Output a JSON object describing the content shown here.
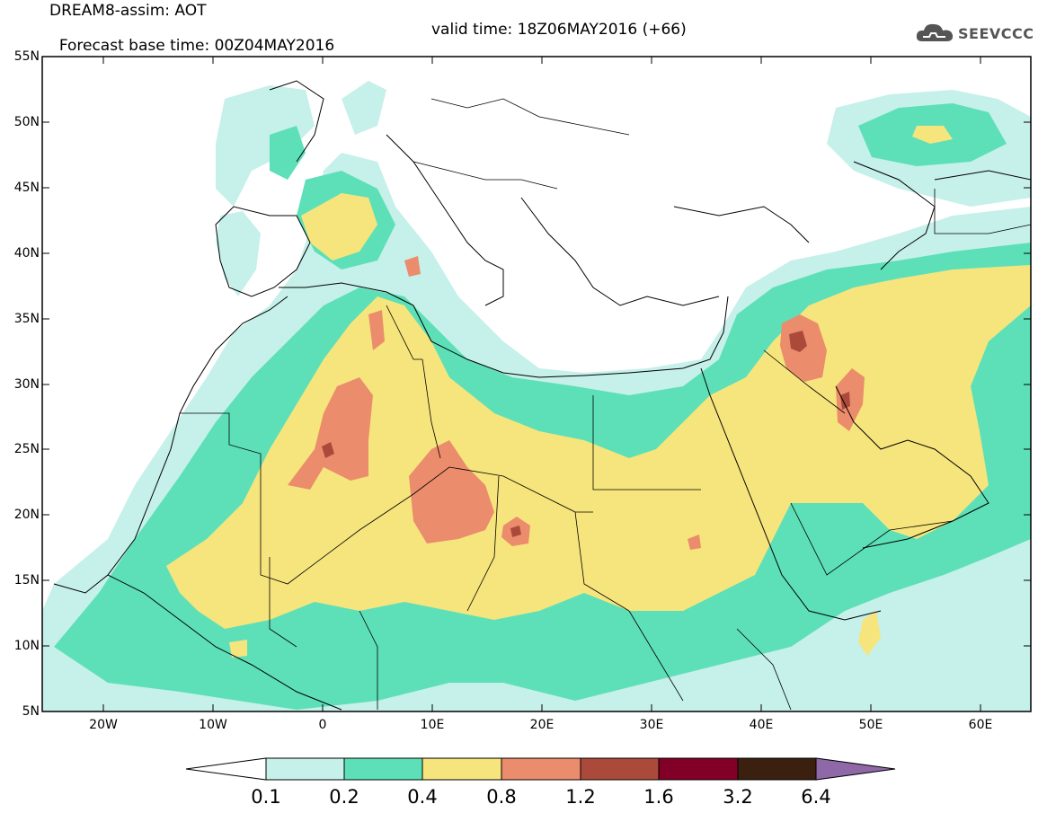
{
  "title": {
    "line1": "DREAM8-assim: AOT",
    "base_time": "Forecast base time: 00Z04MAY2016",
    "valid_time": "valid time: 18Z06MAY2016 (+66)"
  },
  "logo": {
    "text": "SEEVCCC",
    "icon": "cloud-icon"
  },
  "map": {
    "lat_labels": [
      "55N",
      "50N",
      "45N",
      "40N",
      "35N",
      "30N",
      "25N",
      "20N",
      "15N",
      "10N",
      "5N"
    ],
    "lon_labels": [
      "20W",
      "10W",
      "0",
      "10E",
      "20E",
      "30E",
      "40E",
      "50E",
      "60E"
    ],
    "field": "Aerosol optical thickness"
  },
  "colorbar": {
    "labels": [
      "0.1",
      "0.2",
      "0.4",
      "0.8",
      "1.2",
      "1.6",
      "3.2",
      "6.4"
    ],
    "colors": [
      "#ffffff",
      "#c6f0ea",
      "#5de0b8",
      "#f6e57d",
      "#eb8c6c",
      "#ab4a3a",
      "#820028",
      "#3b2010",
      "#8f68a8"
    ]
  }
}
